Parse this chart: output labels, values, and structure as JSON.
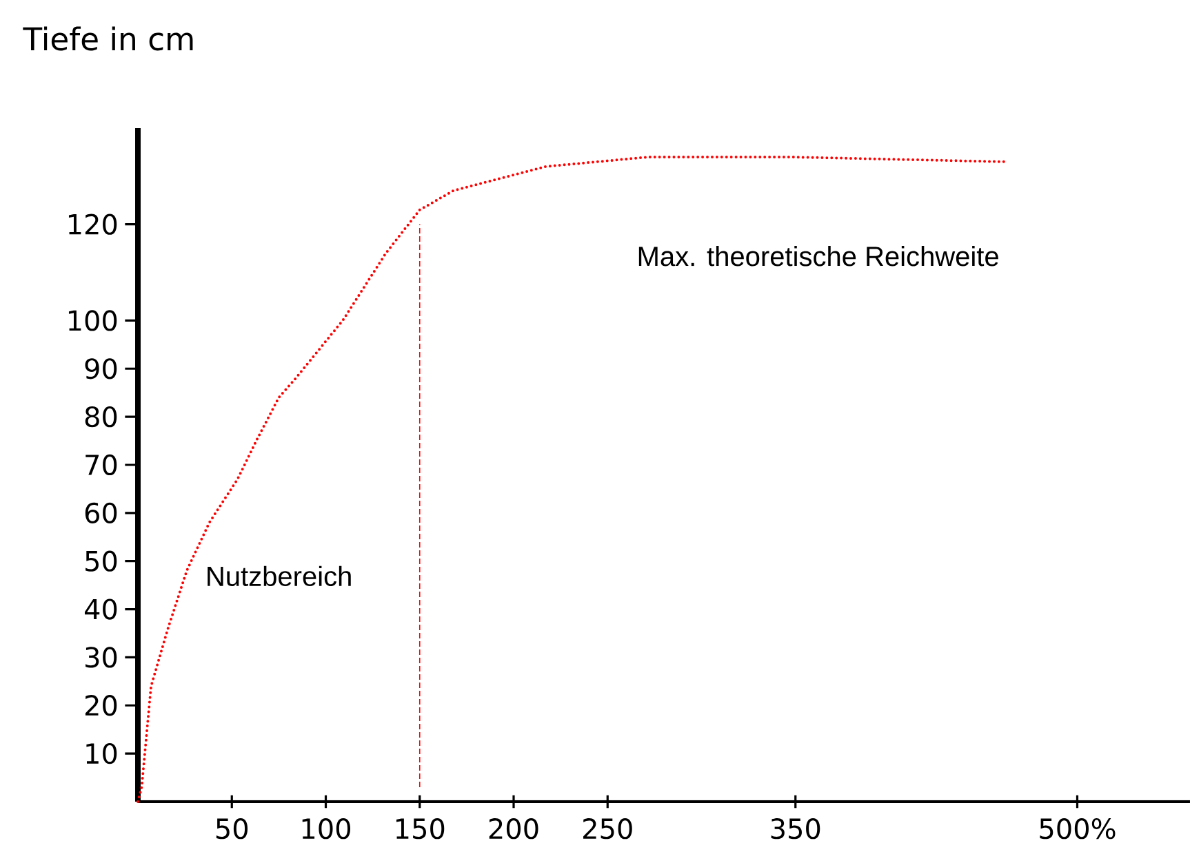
{
  "chart_data": {
    "type": "line",
    "ylabel": "Tiefe in cm",
    "x": [
      0,
      2,
      7,
      16,
      26,
      38,
      53,
      63,
      75,
      84,
      109,
      132,
      150,
      168,
      217,
      272,
      346,
      461
    ],
    "series": [
      {
        "color": "#ff0000",
        "line_style": "dotted",
        "values": [
          0,
          3,
          24,
          36,
          48,
          58,
          67,
          75,
          84,
          88,
          100,
          114,
          123,
          127,
          132,
          134,
          134,
          133
        ]
      }
    ],
    "xlim": [
      0,
      560
    ],
    "xticks": [
      50,
      100,
      150,
      200,
      250,
      350,
      {
        "value": 500,
        "label": "500%"
      }
    ],
    "ylim": [
      0,
      140
    ],
    "yticks": [
      10,
      20,
      30,
      40,
      50,
      60,
      70,
      80,
      90,
      100,
      120
    ],
    "ref_lines": [
      {
        "axis": "x",
        "value": 150,
        "color": "#ff0000",
        "line_style": "dashed"
      }
    ],
    "annotations": [
      "Nutzbereich",
      "Max. theoretische Reichweite"
    ],
    "marker": "none"
  }
}
